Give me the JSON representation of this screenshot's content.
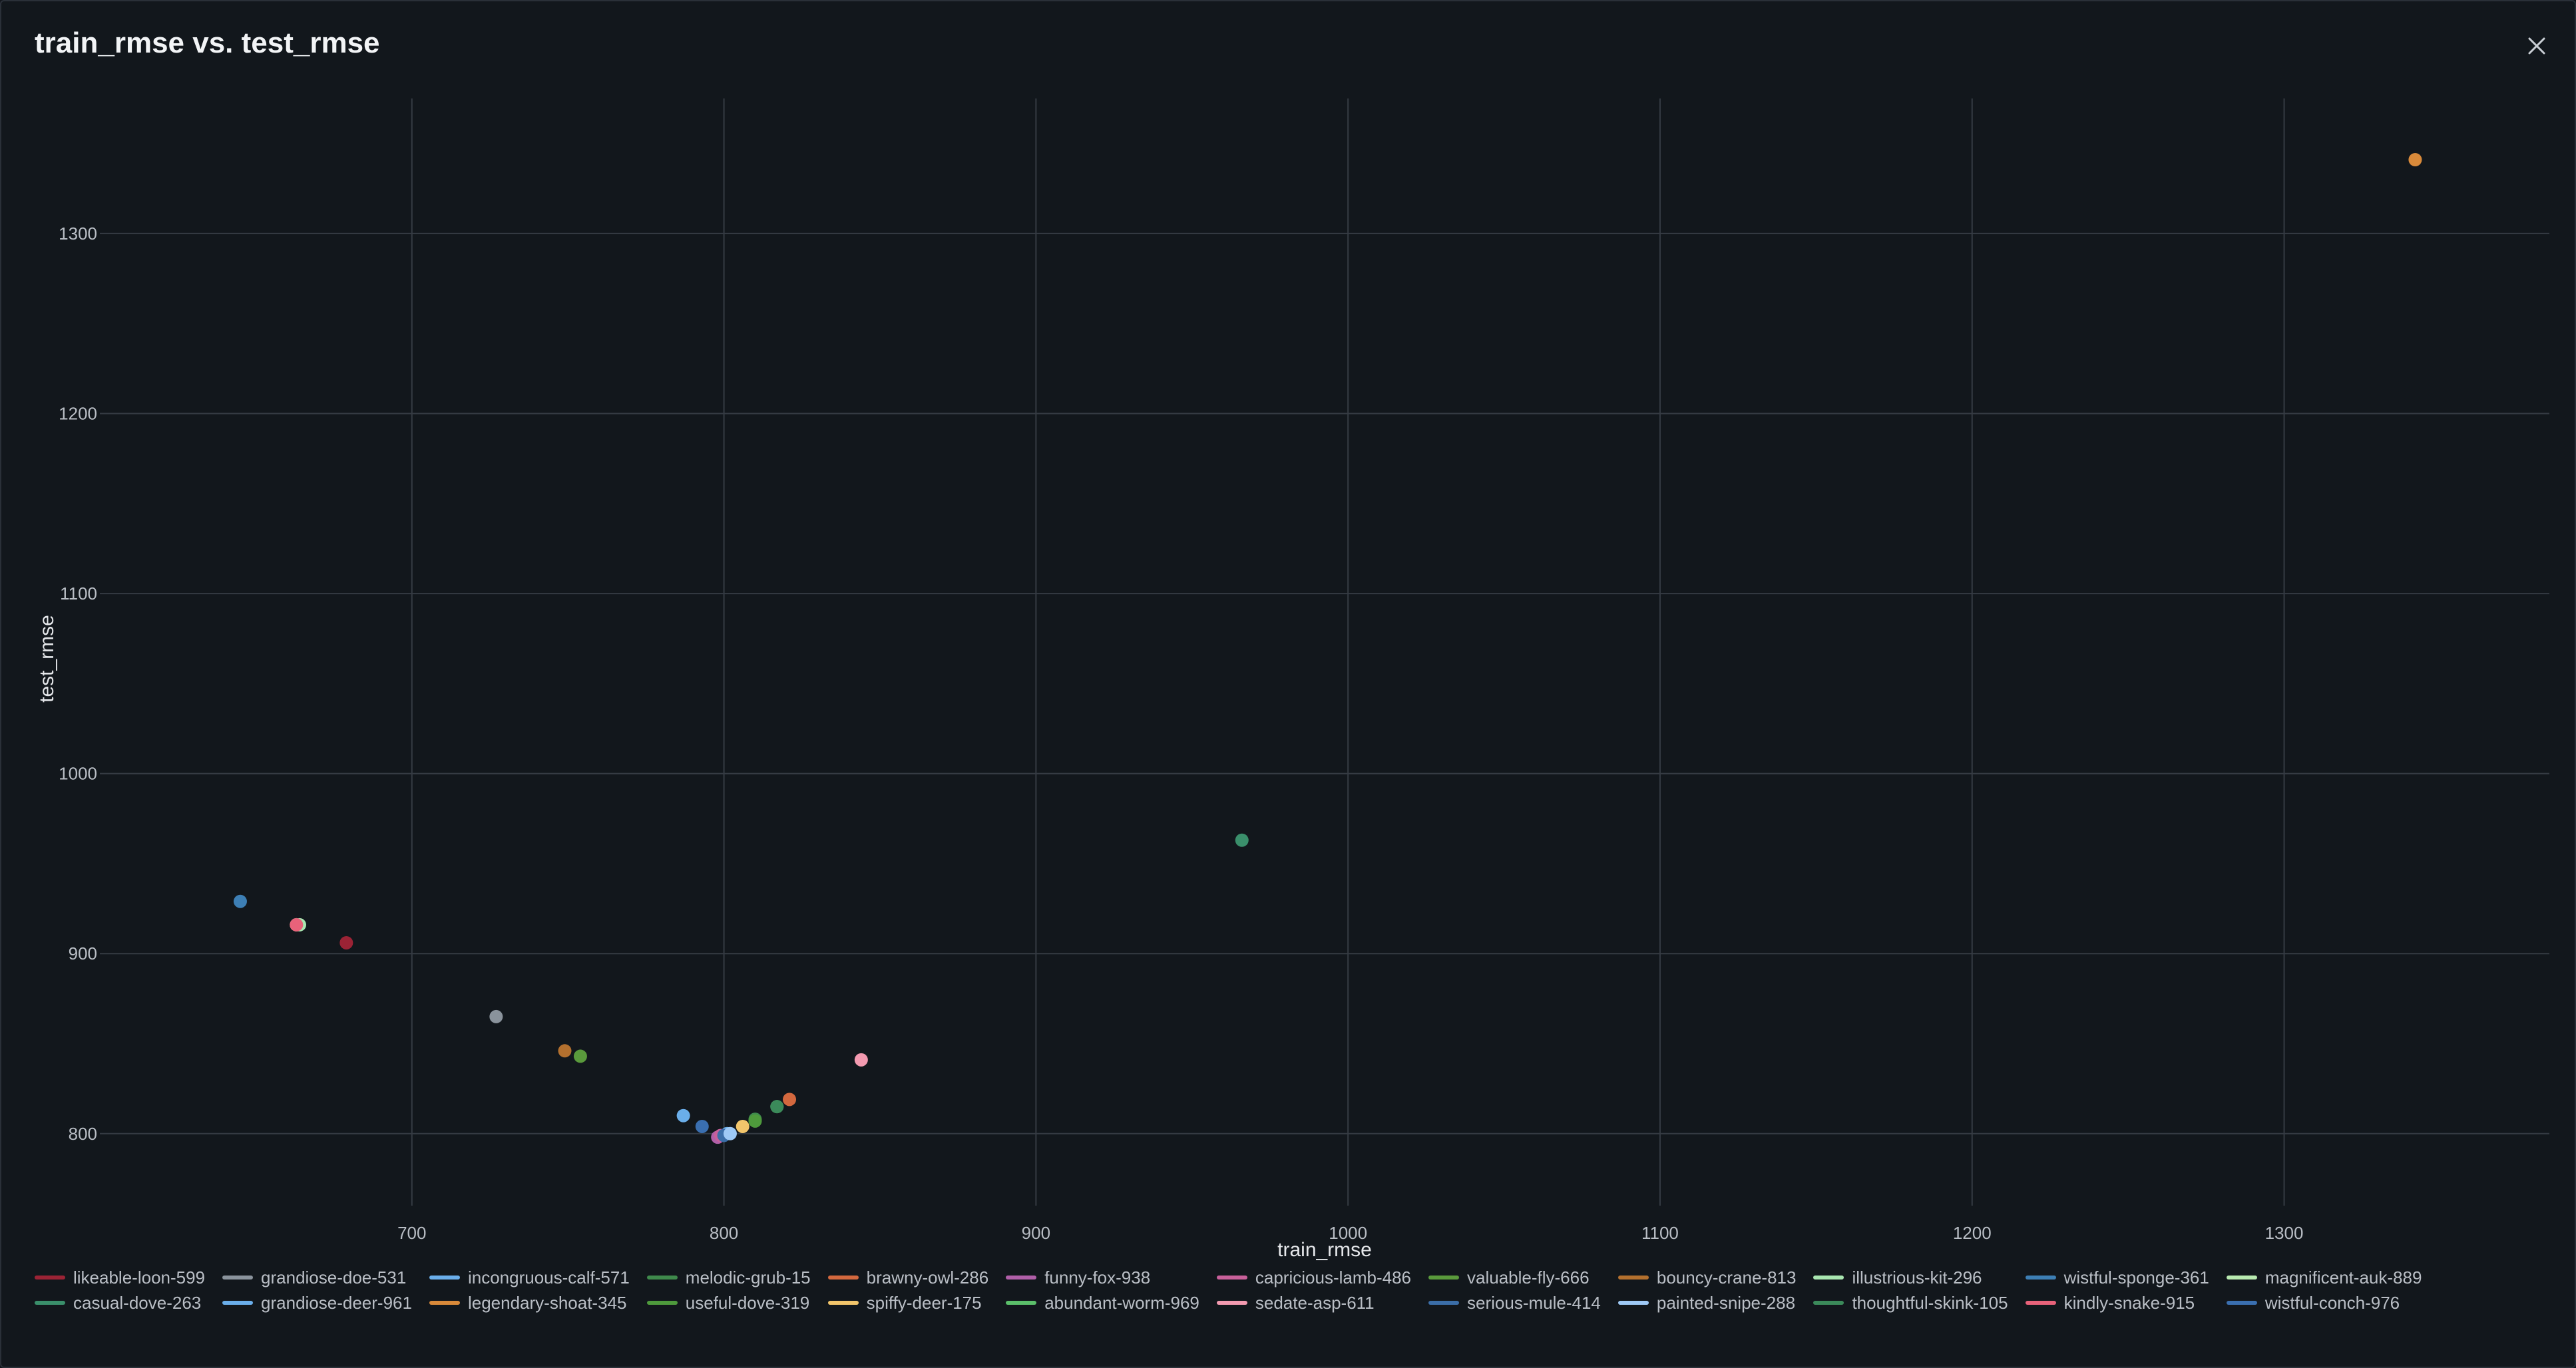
{
  "header": {
    "title": "train_rmse vs. test_rmse"
  },
  "chart_data": {
    "type": "scatter",
    "title": "train_rmse vs. test_rmse",
    "xlabel": "train_rmse",
    "ylabel": "test_rmse",
    "xlim": [
      600,
      1385
    ],
    "ylim": [
      760,
      1375
    ],
    "xticks": [
      700,
      800,
      900,
      1000,
      1100,
      1200,
      1300
    ],
    "yticks": [
      800,
      900,
      1000,
      1100,
      1200,
      1300
    ],
    "grid": true,
    "legend_position": "bottom",
    "series": [
      {
        "name": "likeable-loon-599",
        "color": "#9b2335",
        "x": [
          679
        ],
        "y": [
          906
        ]
      },
      {
        "name": "grandiose-doe-531",
        "color": "#8a939c",
        "x": [
          727
        ],
        "y": [
          865
        ]
      },
      {
        "name": "incongruous-calf-571",
        "color": "#6aaeea",
        "x": [
          801
        ],
        "y": [
          800
        ]
      },
      {
        "name": "melodic-grub-15",
        "color": "#3f8a4c",
        "x": [
          810
        ],
        "y": [
          808
        ]
      },
      {
        "name": "brawny-owl-286",
        "color": "#d3683e",
        "x": [
          821
        ],
        "y": [
          819
        ]
      },
      {
        "name": "funny-fox-938",
        "color": "#b05fa8",
        "x": [
          798
        ],
        "y": [
          798
        ]
      },
      {
        "name": "capricious-lamb-486",
        "color": "#c8609a",
        "x": [
          799
        ],
        "y": [
          799
        ]
      },
      {
        "name": "valuable-fly-666",
        "color": "#5a9a3c",
        "x": [
          754
        ],
        "y": [
          843
        ]
      },
      {
        "name": "bouncy-crane-813",
        "color": "#b3702e",
        "x": [
          749
        ],
        "y": [
          846
        ]
      },
      {
        "name": "illustrious-kit-296",
        "color": "#a8e6b0",
        "x": [
          664
        ],
        "y": [
          916
        ]
      },
      {
        "name": "wistful-sponge-361",
        "color": "#3d7fb5",
        "x": [
          645
        ],
        "y": [
          929
        ]
      },
      {
        "name": "magnificent-auk-889",
        "color": "#b8eab0",
        "x": [
          663
        ],
        "y": [
          916
        ]
      },
      {
        "name": "casual-dove-263",
        "color": "#3a8f6b",
        "x": [
          966
        ],
        "y": [
          963
        ]
      },
      {
        "name": "grandiose-deer-961",
        "color": "#6aaeea",
        "x": [
          787
        ],
        "y": [
          810
        ]
      },
      {
        "name": "legendary-shoat-345",
        "color": "#d98a3a",
        "x": [
          1342
        ],
        "y": [
          1341
        ]
      },
      {
        "name": "useful-dove-319",
        "color": "#4e9a3c",
        "x": [
          810
        ],
        "y": [
          807
        ]
      },
      {
        "name": "spiffy-deer-175",
        "color": "#f2c56b",
        "x": [
          806
        ],
        "y": [
          804
        ]
      },
      {
        "name": "abundant-worm-969",
        "color": "#5bbf6a",
        "x": [
          817
        ],
        "y": [
          815
        ]
      },
      {
        "name": "sedate-asp-611",
        "color": "#f39ab0",
        "x": [
          844
        ],
        "y": [
          841
        ]
      },
      {
        "name": "serious-mule-414",
        "color": "#3b6ea8",
        "x": [
          800
        ],
        "y": [
          799
        ]
      },
      {
        "name": "painted-snipe-288",
        "color": "#9ec9f5",
        "x": [
          802
        ],
        "y": [
          800
        ]
      },
      {
        "name": "thoughtful-skink-105",
        "color": "#3b8a5a",
        "x": [
          817
        ],
        "y": [
          815
        ]
      },
      {
        "name": "kindly-snake-915",
        "color": "#e8627a",
        "x": [
          663
        ],
        "y": [
          916
        ]
      },
      {
        "name": "wistful-conch-976",
        "color": "#3a6fb0",
        "x": [
          793
        ],
        "y": [
          804
        ]
      }
    ]
  }
}
